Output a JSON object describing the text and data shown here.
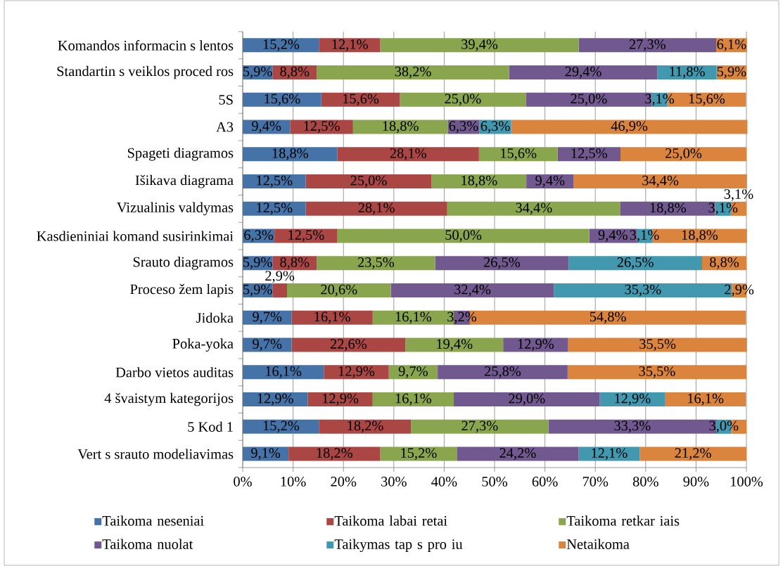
{
  "chart_data": {
    "type": "bar",
    "orientation": "horizontal",
    "stacked": true,
    "categories": [
      "Komandos informacin s lentos",
      "Standartin s veiklos proced ros",
      "5S",
      "A3",
      "Spageti diagramos",
      "Išikava diagrama",
      "Vizualinis valdymas",
      "Kasdieniniai komand susirinkimai",
      "Srauto diagramos",
      "Proceso žem lapis",
      "Jidoka",
      "Poka-yoka",
      "Darbo vietos auditas",
      "4 švaistym kategorijos",
      "5 Kod 1",
      "Vert s srauto modeliavimas"
    ],
    "series": [
      {
        "name": "Taikoma neseniai",
        "color": "#4572a7",
        "values": [
          15.2,
          5.9,
          15.6,
          9.4,
          18.8,
          12.5,
          12.5,
          6.3,
          5.9,
          5.9,
          9.7,
          9.7,
          16.1,
          12.9,
          15.2,
          9.1
        ],
        "value_labels": [
          "15,2%",
          "5,9%",
          "15,6%",
          "9,4%",
          "18,8%",
          "12,5%",
          "12,5%",
          "6,3%",
          "5,9%",
          "5,9%",
          "9,7%",
          "9,7%",
          "16,1%",
          "12,9%",
          "15,2%",
          "9,1%"
        ]
      },
      {
        "name": "Taikoma labai retai",
        "color": "#aa4643",
        "values": [
          12.1,
          8.8,
          15.6,
          12.5,
          28.1,
          25.0,
          28.1,
          12.5,
          8.8,
          2.9,
          16.1,
          22.6,
          12.9,
          12.9,
          18.2,
          18.2
        ],
        "value_labels": [
          "12,1%",
          "8,8%",
          "15,6%",
          "12,5%",
          "28,1%",
          "25,0%",
          "28,1%",
          "12,5%",
          "8,8%",
          "2,9%",
          "16,1%",
          "22,6%",
          "12,9%",
          "12,9%",
          "18,2%",
          "18,2%"
        ]
      },
      {
        "name": "Taikoma retkar iais",
        "color": "#89a54e",
        "values": [
          39.4,
          38.2,
          25.0,
          18.8,
          15.6,
          18.8,
          34.4,
          50.0,
          23.5,
          20.6,
          16.1,
          19.4,
          9.7,
          16.1,
          27.3,
          15.2
        ],
        "value_labels": [
          "39,4%",
          "38,2%",
          "25,0%",
          "18,8%",
          "15,6%",
          "18,8%",
          "34,4%",
          "50,0%",
          "23,5%",
          "20,6%",
          "16,1%",
          "19,4%",
          "9,7%",
          "16,1%",
          "27,3%",
          "15,2%"
        ]
      },
      {
        "name": "Taikoma nuolat",
        "color": "#71588f",
        "values": [
          27.3,
          29.4,
          25.0,
          6.3,
          12.5,
          9.4,
          18.8,
          9.4,
          26.5,
          32.4,
          3.2,
          12.9,
          25.8,
          29.0,
          33.3,
          24.2
        ],
        "value_labels": [
          "27,3%",
          "29,4%",
          "25,0%",
          "6,3%",
          "12,5%",
          "9,4%",
          "18,8%",
          "9,4%",
          "26,5%",
          "32,4%",
          "3,2%",
          "12,9%",
          "25,8%",
          "29,0%",
          "33,3%",
          "24,2%"
        ]
      },
      {
        "name": "Taikymas tap s pro iu",
        "color": "#4198af",
        "values": [
          null,
          11.8,
          3.1,
          6.3,
          null,
          null,
          3.1,
          3.1,
          26.5,
          35.3,
          null,
          null,
          null,
          12.9,
          3.0,
          12.1
        ],
        "value_labels": [
          null,
          "11,8%",
          "3,1%",
          "6,3%",
          null,
          null,
          "3,1%",
          "3,1%",
          "26,5%",
          "35,3%",
          null,
          null,
          null,
          "12,9%",
          "3,0%",
          "12,1%"
        ]
      },
      {
        "name": "Netaikoma",
        "color": "#db843d",
        "values": [
          6.1,
          5.9,
          15.6,
          46.9,
          25.0,
          34.4,
          3.1,
          18.8,
          8.8,
          2.9,
          54.8,
          35.5,
          35.5,
          16.1,
          3.0,
          21.2
        ],
        "value_labels": [
          "6,1%",
          "5,9%",
          "15,6%",
          "46,9%",
          "25,0%",
          "34,4%",
          "3,1%",
          "18,8%",
          "8,8%",
          "2,9%",
          "54,8%",
          "35,5%",
          "35,5%",
          "16,1%",
          null,
          "21,2%"
        ]
      }
    ],
    "xlim": [
      0,
      100
    ],
    "xticks": [
      {
        "value": 0,
        "label": "0%"
      },
      {
        "value": 10,
        "label": "10%"
      },
      {
        "value": 20,
        "label": "20%"
      },
      {
        "value": 30,
        "label": "30%"
      },
      {
        "value": 40,
        "label": "40%"
      },
      {
        "value": 50,
        "label": "50%"
      },
      {
        "value": 60,
        "label": "60%"
      },
      {
        "value": 70,
        "label": "70%"
      },
      {
        "value": 80,
        "label": "80%"
      },
      {
        "value": 90,
        "label": "90%"
      },
      {
        "value": 100,
        "label": "100%"
      }
    ],
    "grid": "x",
    "legend": "bottom"
  }
}
